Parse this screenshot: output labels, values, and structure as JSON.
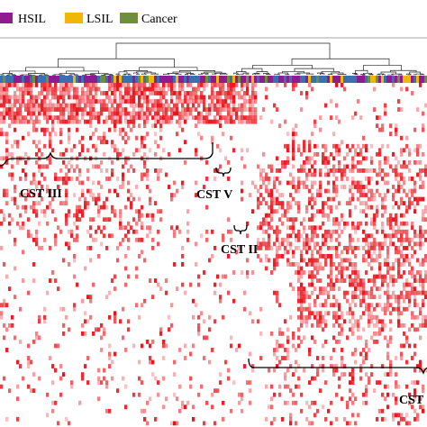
{
  "legend": {
    "items": [
      {
        "label": "HSIL",
        "color": "#8e1b8f"
      },
      {
        "label": "LSIL",
        "color": "#f2b705"
      },
      {
        "label": "Cancer",
        "color": "#6f8f3a"
      }
    ]
  },
  "chart_data": {
    "type": "heatmap",
    "colors": {
      "high": "#e8141c",
      "low": "#ffffff",
      "sample_bar_extra": "#3a6fb0"
    },
    "clusters": [
      {
        "label": "CST III"
      },
      {
        "label": "CST V"
      },
      {
        "label": "CST II"
      },
      {
        "label": "CST"
      }
    ]
  }
}
